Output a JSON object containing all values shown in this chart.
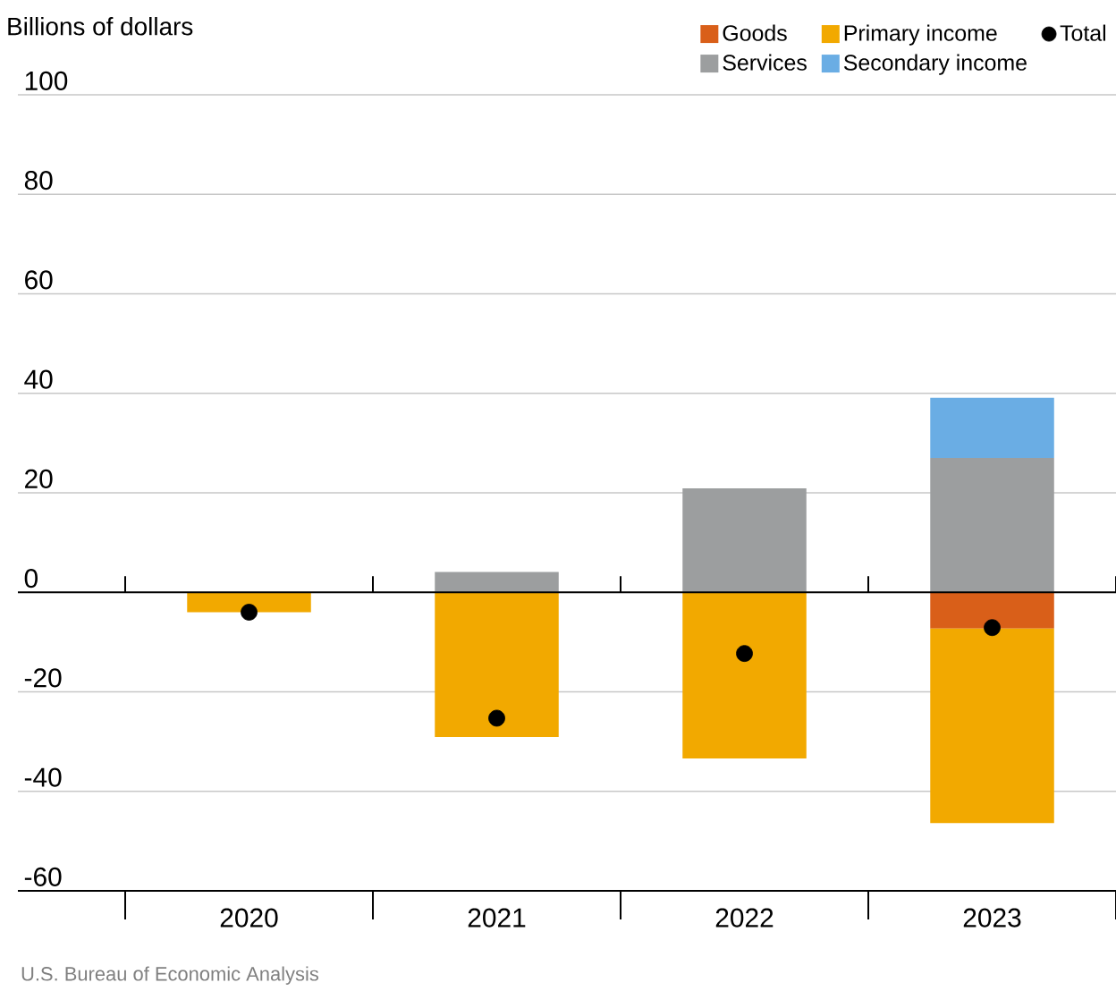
{
  "chart_data": {
    "type": "bar",
    "stacked": true,
    "title": "Billions of dollars",
    "categories": [
      "2020",
      "2021",
      "2022",
      "2023"
    ],
    "series": [
      {
        "name": "Goods",
        "color": "#d95f19",
        "values": [
          null,
          null,
          null,
          -7.3
        ]
      },
      {
        "name": "Services",
        "color": "#9c9e9f",
        "values": [
          null,
          4.1,
          20.9,
          27
        ]
      },
      {
        "name": "Primary income",
        "color": "#f2a900",
        "values": [
          -4,
          -29.1,
          -33.4,
          -39.1
        ]
      },
      {
        "name": "Secondary income",
        "color": "#6aade4",
        "values": [
          null,
          null,
          null,
          12.1
        ]
      },
      {
        "name": "Total",
        "type": "scatter",
        "color": "#000000",
        "values": [
          -4,
          -25.3,
          -12.3,
          -7.1
        ]
      }
    ],
    "marker": "circle",
    "ylim": [
      -60,
      100
    ],
    "yticks": [
      -60,
      -40,
      -20,
      0,
      20,
      40,
      60,
      80,
      100
    ],
    "grid": "y",
    "legend": "top right",
    "annotations": [
      "U.S. Bureau of Economic Analysis"
    ]
  }
}
